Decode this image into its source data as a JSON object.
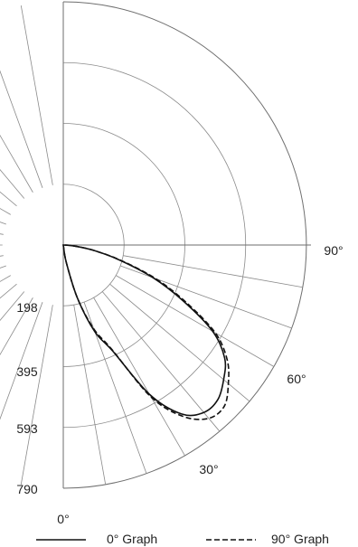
{
  "chart_data": {
    "type": "polar",
    "radial_axis": {
      "ticks": [
        198,
        395,
        593,
        790
      ],
      "tick_labels": [
        "198",
        "395",
        "593",
        "790"
      ],
      "max": 790
    },
    "angular_axis": {
      "labels": [
        "0°",
        "30°",
        "60°",
        "90°"
      ],
      "angles_deg": [
        0,
        30,
        60,
        90
      ],
      "grid_step_deg": 10,
      "range_deg": [
        -180,
        90
      ]
    },
    "grid": true,
    "legend": {
      "placement": "bottom",
      "entries": [
        {
          "label": "0° Graph",
          "style": "solid"
        },
        {
          "label": "90° Graph",
          "style": "dashed"
        }
      ]
    },
    "series": [
      {
        "name": "0° Graph",
        "style": "solid",
        "angles_deg": [
          0,
          10,
          15,
          20,
          25,
          30,
          35,
          40,
          45,
          50,
          55,
          60,
          65,
          70,
          75,
          80,
          85,
          90
        ],
        "values": [
          0,
          60,
          180,
          300,
          380,
          560,
          670,
          710,
          710,
          680,
          640,
          560,
          430,
          310,
          190,
          100,
          35,
          0
        ]
      },
      {
        "name": "90° Graph",
        "style": "dashed",
        "angles_deg": [
          0,
          10,
          15,
          20,
          25,
          30,
          35,
          40,
          45,
          50,
          55,
          60,
          65,
          70,
          75,
          80,
          85,
          90
        ],
        "values": [
          0,
          60,
          180,
          290,
          375,
          570,
          680,
          735,
          740,
          700,
          650,
          570,
          440,
          320,
          195,
          100,
          35,
          0
        ]
      }
    ]
  }
}
